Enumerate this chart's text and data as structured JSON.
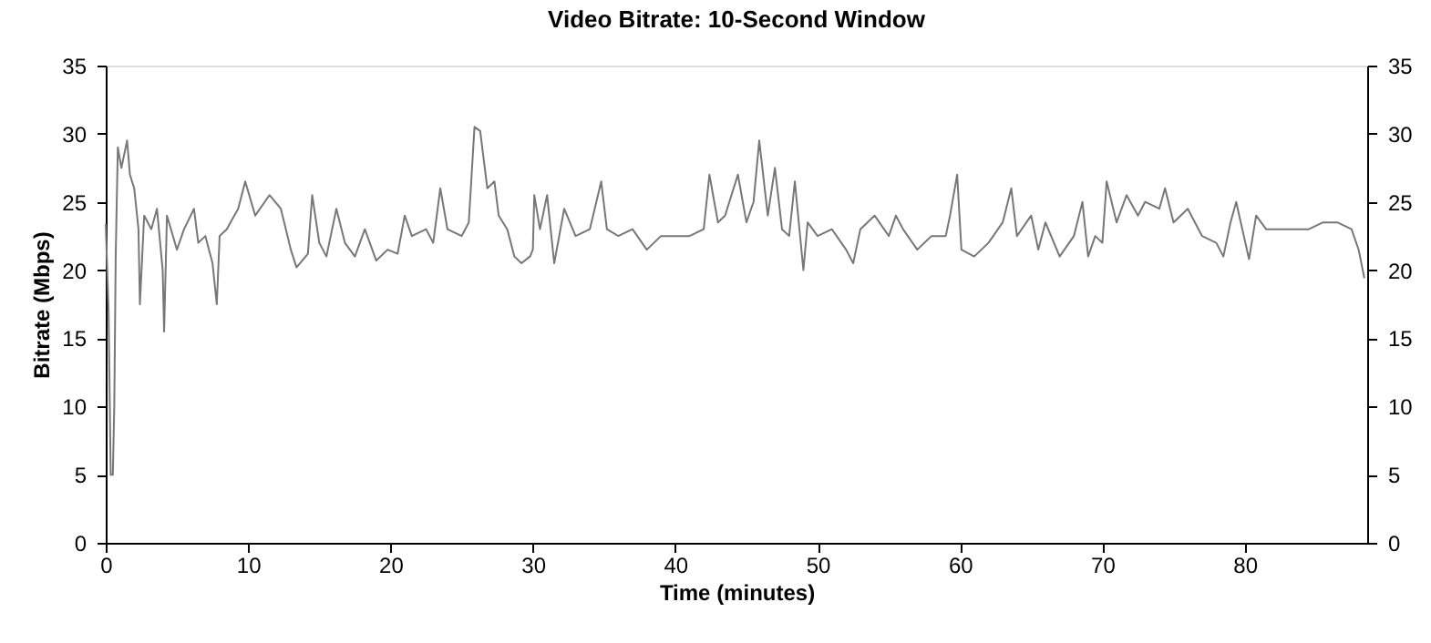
{
  "chart_data": {
    "type": "line",
    "title": "Video Bitrate: 10-Second Window",
    "xlabel": "Time (minutes)",
    "ylabel": "Bitrate (Mbps)",
    "xlim": [
      0,
      88.6
    ],
    "xticks": [
      0,
      10,
      20,
      30,
      40,
      50,
      60,
      70,
      80
    ],
    "ylim": [
      0,
      35
    ],
    "yticks": [
      0,
      5,
      10,
      15,
      20,
      25,
      30,
      35
    ],
    "y2lim": [
      0,
      35
    ],
    "y2ticks": [
      0,
      5,
      10,
      15,
      20,
      25,
      30,
      35
    ],
    "grid": false,
    "legend": false,
    "marker": "none",
    "line_style": "solid",
    "series": [
      {
        "color": "#777777",
        "x": [
          0.0,
          0.2,
          0.35,
          0.5,
          0.6,
          0.7,
          0.85,
          1.1,
          1.5,
          1.7,
          2.0,
          2.3,
          2.4,
          2.7,
          3.2,
          3.6,
          4.0,
          4.1,
          4.3,
          5.0,
          5.5,
          6.2,
          6.5,
          7.0,
          7.5,
          7.8,
          8.0,
          8.5,
          9.3,
          9.8,
          10.5,
          11.5,
          12.3,
          13.0,
          13.4,
          14.2,
          14.5,
          15.0,
          15.5,
          16.2,
          16.8,
          17.5,
          18.2,
          19.0,
          19.8,
          20.5,
          21.0,
          21.5,
          22.5,
          23.0,
          23.5,
          24.0,
          25.0,
          25.5,
          25.9,
          26.3,
          26.8,
          27.3,
          27.6,
          28.2,
          28.7,
          29.2,
          29.8,
          30.0,
          30.1,
          30.5,
          31.0,
          31.5,
          32.2,
          33.0,
          34.0,
          34.8,
          35.2,
          36.0,
          37.0,
          38.0,
          39.0,
          40.0,
          41.0,
          42.0,
          42.4,
          43.0,
          43.5,
          44.4,
          45.0,
          45.5,
          45.9,
          46.5,
          47.0,
          47.5,
          48.0,
          48.4,
          49.0,
          49.3,
          50.0,
          51.0,
          52.0,
          52.5,
          53.0,
          54.0,
          55.0,
          55.5,
          56.0,
          57.0,
          58.0,
          59.0,
          59.3,
          59.8,
          60.1,
          61.0,
          62.0,
          63.0,
          63.6,
          64.0,
          65.0,
          65.5,
          66.0,
          67.0,
          68.0,
          68.6,
          69.0,
          69.5,
          70.0,
          70.3,
          71.0,
          71.7,
          72.5,
          73.0,
          74.0,
          74.4,
          75.0,
          76.0,
          77.0,
          78.0,
          78.5,
          79.0,
          79.4,
          80.3,
          80.8,
          81.5,
          82.5,
          83.5,
          84.5,
          85.5,
          86.5,
          87.5,
          88.0,
          88.4
        ],
        "values": [
          23.4,
          17,
          5,
          5,
          10,
          21,
          29,
          27.5,
          29.5,
          27,
          26,
          23,
          17.5,
          24,
          23,
          24.5,
          20,
          15.5,
          24,
          21.5,
          23,
          24.5,
          22,
          22.5,
          20.5,
          17.5,
          22.5,
          23,
          24.5,
          26.5,
          24,
          25.5,
          24.5,
          21.5,
          20.2,
          21.2,
          25.5,
          22,
          21,
          24.5,
          22,
          21,
          23,
          20.7,
          21.5,
          21.2,
          24,
          22.5,
          23,
          22,
          26,
          23,
          22.5,
          23.5,
          30.5,
          30.2,
          26,
          26.5,
          24,
          23,
          21,
          20.5,
          21,
          21.5,
          25.5,
          23,
          25.5,
          20.5,
          24.5,
          22.5,
          23,
          26.5,
          23,
          22.5,
          23,
          21.5,
          22.5,
          22.5,
          22.5,
          23,
          27,
          23.5,
          24,
          27,
          23.5,
          25,
          29.5,
          24,
          27.5,
          23,
          22.5,
          26.5,
          20,
          23.5,
          22.5,
          23,
          21.5,
          20.5,
          23,
          24,
          22.5,
          24,
          23,
          21.5,
          22.5,
          22.5,
          24,
          27,
          21.5,
          21,
          22,
          23.5,
          26,
          22.5,
          24,
          21.5,
          23.5,
          21,
          22.5,
          25,
          21,
          22.5,
          22,
          26.5,
          23.5,
          25.5,
          24,
          25,
          24.5,
          26,
          23.5,
          24.5,
          22.5,
          22,
          21,
          23.5,
          25,
          20.8,
          24,
          23,
          23,
          23,
          23,
          23.5,
          23.5,
          23,
          21.5,
          19.4
        ]
      }
    ]
  }
}
